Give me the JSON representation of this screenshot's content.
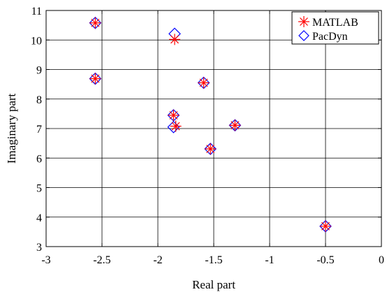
{
  "chart_data": {
    "type": "scatter",
    "title": "",
    "xlabel": "Real part",
    "ylabel": "Imaginary part",
    "xlim": [
      -3,
      0
    ],
    "ylim": [
      3,
      11
    ],
    "xticks": [
      -3,
      -2.5,
      -2,
      -1.5,
      -1,
      -0.5,
      0
    ],
    "xtick_labels": [
      "-3",
      "-2.5",
      "-2",
      "-1.5",
      "-1",
      "-0.5",
      "0"
    ],
    "yticks": [
      3,
      4,
      5,
      6,
      7,
      8,
      9,
      10,
      11
    ],
    "ytick_labels": [
      "3",
      "4",
      "5",
      "6",
      "7",
      "8",
      "9",
      "10",
      "11"
    ],
    "grid": true,
    "legend_position": "top-right",
    "series": [
      {
        "name": "MATLAB",
        "marker": "star",
        "color": "#ff0000",
        "points": [
          {
            "x": -2.56,
            "y": 10.58
          },
          {
            "x": -2.56,
            "y": 8.69
          },
          {
            "x": -1.85,
            "y": 10.02
          },
          {
            "x": -1.59,
            "y": 8.55
          },
          {
            "x": -1.86,
            "y": 7.45
          },
          {
            "x": -1.84,
            "y": 7.08
          },
          {
            "x": -1.31,
            "y": 7.11
          },
          {
            "x": -1.53,
            "y": 6.31
          },
          {
            "x": -0.5,
            "y": 3.69
          }
        ]
      },
      {
        "name": "PacDyn",
        "marker": "diamond",
        "color": "#0000ff",
        "points": [
          {
            "x": -2.56,
            "y": 10.58
          },
          {
            "x": -2.56,
            "y": 8.69
          },
          {
            "x": -1.85,
            "y": 10.21
          },
          {
            "x": -1.59,
            "y": 8.55
          },
          {
            "x": -1.86,
            "y": 7.45
          },
          {
            "x": -1.86,
            "y": 7.05
          },
          {
            "x": -1.31,
            "y": 7.11
          },
          {
            "x": -1.53,
            "y": 6.31
          },
          {
            "x": -0.5,
            "y": 3.69
          }
        ]
      }
    ]
  }
}
